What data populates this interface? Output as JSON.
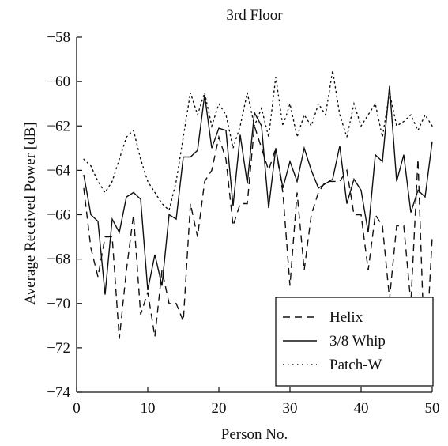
{
  "chart_data": {
    "type": "line",
    "title": "3rd Floor",
    "xlabel": "Person No.",
    "ylabel": "Average Received Power [dB]",
    "xlim": [
      0,
      50
    ],
    "ylim": [
      -74,
      -58
    ],
    "xticks": [
      0,
      10,
      20,
      30,
      40,
      50
    ],
    "yticks": [
      -74,
      -72,
      -70,
      -68,
      -66,
      -64,
      -62,
      -60,
      -58
    ],
    "grid": false,
    "legend_position": "bottom-right",
    "x": [
      1,
      2,
      3,
      4,
      5,
      6,
      7,
      8,
      9,
      10,
      11,
      12,
      13,
      14,
      15,
      16,
      17,
      18,
      19,
      20,
      21,
      22,
      23,
      24,
      25,
      26,
      27,
      28,
      29,
      30,
      31,
      32,
      33,
      34,
      35,
      36,
      37,
      38,
      39,
      40,
      41,
      42,
      43,
      44,
      45,
      46,
      47,
      48,
      49,
      50
    ],
    "series": [
      {
        "name": "Helix",
        "style": "dashed",
        "color": "#111111",
        "values": [
          -64.8,
          -67.5,
          -68.8,
          -67.0,
          -67.0,
          -71.6,
          -68.5,
          -66.0,
          -70.5,
          -69.5,
          -71.5,
          -68.5,
          -70.0,
          -70.0,
          -70.8,
          -65.5,
          -67.0,
          -64.5,
          -64.0,
          -62.5,
          -63.5,
          -66.5,
          -65.5,
          -65.5,
          -62.0,
          -63.0,
          -64.0,
          -63.0,
          -65.0,
          -69.2,
          -65.0,
          -68.5,
          -66.0,
          -65.0,
          -64.5,
          -64.5,
          -64.5,
          -64.0,
          -66.0,
          -66.0,
          -68.5,
          -66.0,
          -66.5,
          -69.8,
          -66.5,
          -66.5,
          -70.0,
          -63.5,
          -73.0,
          -67.0
        ]
      },
      {
        "name": "3/8 Whip",
        "style": "solid",
        "color": "#111111",
        "values": [
          -64.2,
          -66.0,
          -66.3,
          -69.6,
          -66.2,
          -66.8,
          -65.2,
          -65.0,
          -65.3,
          -69.4,
          -67.8,
          -69.2,
          -66.0,
          -66.2,
          -63.4,
          -63.4,
          -63.1,
          -60.6,
          -63.0,
          -62.1,
          -62.2,
          -65.6,
          -62.4,
          -64.6,
          -61.4,
          -62.0,
          -65.7,
          -63.0,
          -64.8,
          -63.6,
          -64.5,
          -63.0,
          -64.0,
          -64.8,
          -64.6,
          -64.4,
          -62.9,
          -65.5,
          -64.4,
          -64.9,
          -66.8,
          -63.3,
          -63.6,
          -60.2,
          -64.5,
          -63.3,
          -65.9,
          -64.9,
          -65.2,
          -62.7
        ]
      },
      {
        "name": "Patch-W",
        "style": "dotted",
        "color": "#111111",
        "values": [
          -63.5,
          -63.8,
          -64.5,
          -65.0,
          -64.5,
          -63.5,
          -62.5,
          -62.2,
          -63.5,
          -64.5,
          -65.0,
          -65.5,
          -65.8,
          -64.5,
          -62.5,
          -60.5,
          -61.5,
          -60.5,
          -62.0,
          -61.0,
          -61.5,
          -63.0,
          -62.0,
          -60.5,
          -62.0,
          -61.2,
          -62.5,
          -59.8,
          -62.0,
          -61.0,
          -62.5,
          -61.5,
          -62.0,
          -61.0,
          -61.5,
          -59.5,
          -61.5,
          -62.5,
          -61.0,
          -62.0,
          -61.5,
          -61.0,
          -62.5,
          -60.5,
          -62.0,
          -61.8,
          -61.5,
          -62.2,
          -61.5,
          -62.0
        ]
      }
    ]
  }
}
